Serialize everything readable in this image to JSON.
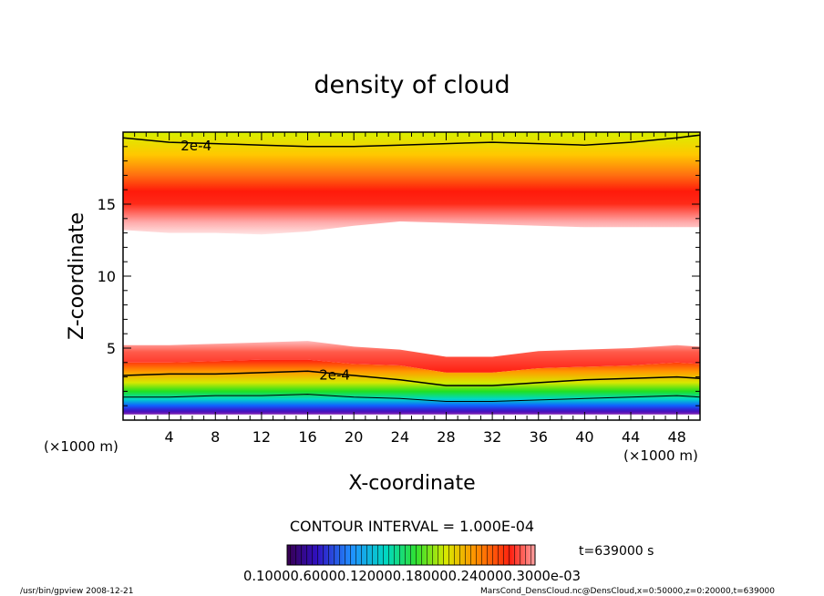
{
  "chart_data": {
    "type": "heatmap",
    "title": "density of cloud",
    "xlabel": "X-coordinate",
    "ylabel": "Z-coordinate",
    "x_unit": "(×1000 m)",
    "xlim": [
      0,
      50
    ],
    "ylim": [
      0,
      20
    ],
    "x_ticks": [
      4,
      8,
      12,
      16,
      20,
      24,
      28,
      32,
      36,
      40,
      44,
      48
    ],
    "y_ticks": [
      5,
      10,
      15
    ],
    "upper_layer": {
      "x": [
        0,
        4,
        8,
        12,
        16,
        20,
        24,
        28,
        32,
        36,
        40,
        44,
        48,
        50
      ],
      "base_z": [
        13.2,
        13.0,
        13.0,
        12.9,
        13.1,
        13.5,
        13.8,
        13.7,
        13.6,
        13.5,
        13.4,
        13.4,
        13.4,
        13.4
      ],
      "peak_z": 15.6,
      "contour_2e4_z": [
        19.6,
        19.3,
        19.2,
        19.1,
        19.0,
        19.0,
        19.1,
        19.2,
        19.3,
        19.2,
        19.1,
        19.3,
        19.6,
        19.8
      ]
    },
    "lower_layer": {
      "x": [
        0,
        4,
        8,
        12,
        16,
        20,
        24,
        28,
        32,
        36,
        40,
        44,
        48,
        50
      ],
      "top_z": [
        5.2,
        5.2,
        5.3,
        5.4,
        5.5,
        5.1,
        4.9,
        4.4,
        4.4,
        4.8,
        4.9,
        5.0,
        5.2,
        5.1
      ],
      "peak_z": [
        4.0,
        4.0,
        4.1,
        4.2,
        4.2,
        3.9,
        3.8,
        3.3,
        3.3,
        3.6,
        3.7,
        3.8,
        4.0,
        3.9
      ],
      "contour_2e4_z": [
        3.1,
        3.2,
        3.2,
        3.3,
        3.4,
        3.1,
        2.8,
        2.4,
        2.4,
        2.6,
        2.8,
        2.9,
        3.0,
        2.9
      ],
      "contour_1e4_z": [
        1.6,
        1.6,
        1.7,
        1.7,
        1.8,
        1.6,
        1.5,
        1.3,
        1.3,
        1.4,
        1.5,
        1.6,
        1.7,
        1.6
      ],
      "base_z": [
        0.4,
        0.4,
        0.4,
        0.4,
        0.4,
        0.4,
        0.4,
        0.4,
        0.4,
        0.4,
        0.4,
        0.4,
        0.4,
        0.4
      ]
    },
    "contour_labels": [
      {
        "text": "2e-4",
        "x": 5.0,
        "z": 19.1
      },
      {
        "text": "2e-4",
        "x": 17.0,
        "z": 3.2
      }
    ],
    "colorbar": {
      "min": 0.1,
      "max": 0.3,
      "label_text": "0.10000.60000.120000.180000.240000.3000e-03"
    },
    "contour_interval_text": "CONTOUR INTERVAL = 1.000E-04",
    "time_text": "t=639000 s",
    "footer_left": "/usr/bin/gpview  2008-12-21",
    "footer_right": "MarsCond_DensCloud.nc@DensCloud,x=0:50000,z=0:20000,t=639000"
  }
}
